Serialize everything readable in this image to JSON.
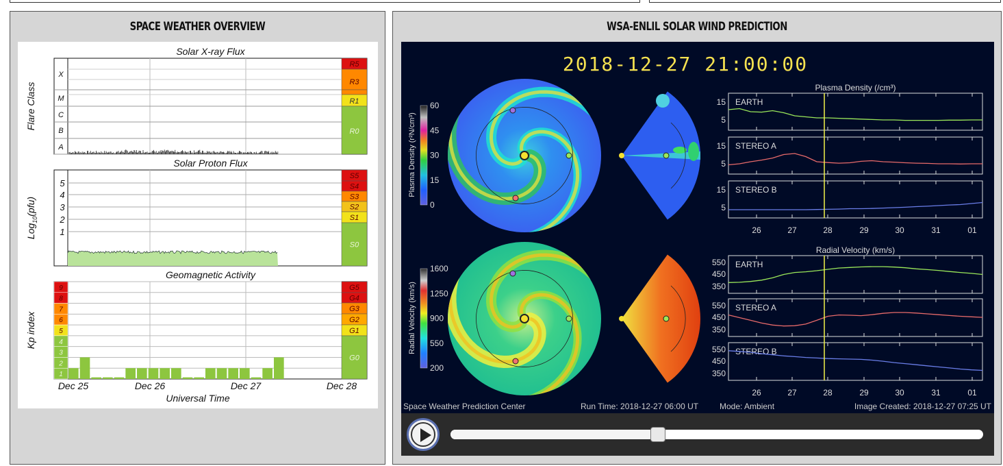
{
  "left_panel": {
    "title": "SPACE WEATHER OVERVIEW",
    "xray": {
      "title": "Solar X-ray Flux",
      "ylabel": "Flare Class",
      "classes": [
        "X",
        "M",
        "C",
        "B",
        "A"
      ],
      "scale": [
        {
          "label": "R5",
          "color": "#dd1111"
        },
        {
          "label": "R3",
          "color": "#ff8800"
        },
        {
          "label": "R1",
          "color": "#f2e21a"
        },
        {
          "label": "R0",
          "color": "#8dc63f"
        }
      ]
    },
    "proton": {
      "title": "Solar Proton Flux",
      "ylabel_main": "Log",
      "ylabel_sub": "10",
      "ylabel_tail": "(pfu)",
      "ticks": [
        "5",
        "4",
        "3",
        "2",
        "1"
      ],
      "scale": [
        {
          "label": "S5",
          "color": "#dd1111"
        },
        {
          "label": "S4",
          "color": "#dd1111"
        },
        {
          "label": "S3",
          "color": "#ff8800"
        },
        {
          "label": "S2",
          "color": "#f2c21a"
        },
        {
          "label": "S1",
          "color": "#f2e21a"
        },
        {
          "label": "S0",
          "color": "#8dc63f"
        }
      ]
    },
    "geomag": {
      "title": "Geomagnetic Activity",
      "ylabel": "Kp index",
      "kp_levels": [
        {
          "label": "9",
          "color": "#dd1111"
        },
        {
          "label": "8",
          "color": "#dd1111"
        },
        {
          "label": "7",
          "color": "#ff8800"
        },
        {
          "label": "6",
          "color": "#ff8800"
        },
        {
          "label": "5",
          "color": "#f2e21a"
        },
        {
          "label": "4",
          "color": "#8dc63f"
        },
        {
          "label": "3",
          "color": "#8dc63f"
        },
        {
          "label": "2",
          "color": "#8dc63f"
        },
        {
          "label": "1",
          "color": "#8dc63f"
        }
      ],
      "scale": [
        {
          "label": "G5",
          "color": "#dd1111"
        },
        {
          "label": "G4",
          "color": "#dd1111"
        },
        {
          "label": "G3",
          "color": "#ff8800"
        },
        {
          "label": "G2",
          "color": "#ffa800"
        },
        {
          "label": "G1",
          "color": "#f2e21a"
        },
        {
          "label": "G0",
          "color": "#8dc63f"
        }
      ],
      "kp_values": [
        1,
        2,
        0.15,
        0.15,
        0.15,
        1,
        1,
        1,
        1,
        1,
        0.15,
        0.15,
        1,
        1,
        1,
        1,
        0.15,
        1,
        2
      ]
    },
    "x_ticks": [
      "Dec 25",
      "Dec 26",
      "Dec 27",
      "Dec 28"
    ],
    "xlabel": "Universal Time"
  },
  "right_panel": {
    "title": "WSA-ENLIL SOLAR WIND PREDICTION",
    "datetime": "2018-12-27  21:00:00",
    "density_colorbar": {
      "label": "Plasma Density (r²N/cm³)",
      "ticks": [
        "60",
        "45",
        "30",
        "15",
        "0"
      ]
    },
    "velocity_colorbar": {
      "label": "Radial Velocity (km/s)",
      "ticks": [
        "1600",
        "1250",
        "900",
        "550",
        "200"
      ]
    },
    "density_plots": {
      "title": "Plasma Density (/cm³)",
      "ticks": [
        "15",
        "5"
      ],
      "series": [
        {
          "name": "EARTH",
          "color": "#9be85a",
          "values": [
            10,
            10.5,
            9,
            8.8,
            9.5,
            8.5,
            7,
            6.5,
            6,
            6,
            5.8,
            5.6,
            5.4,
            5.2,
            5,
            5,
            4.8,
            4.8,
            4.8,
            4.8,
            4.9,
            4.9,
            5,
            5
          ]
        },
        {
          "name": "STEREO A",
          "color": "#e86a6a",
          "values": [
            4.5,
            5,
            6,
            6.8,
            7.8,
            9.5,
            10,
            8.5,
            6,
            5.6,
            5.3,
            5.5,
            6.2,
            6.5,
            6,
            5.8,
            5.5,
            5.3,
            5.2,
            5,
            5,
            4.9,
            5,
            5
          ]
        },
        {
          "name": "STEREO B",
          "color": "#6a7ee8",
          "values": [
            4,
            4,
            4,
            4,
            4,
            4,
            4,
            4,
            4.1,
            4.2,
            4.3,
            4.5,
            4.5,
            4.6,
            4.8,
            5,
            5.2,
            5.5,
            5.7,
            6,
            6.3,
            6.5,
            7,
            7.5
          ]
        }
      ]
    },
    "velocity_plots": {
      "title": "Radial Velocity (km/s)",
      "ticks": [
        "550",
        "450",
        "350"
      ],
      "series": [
        {
          "name": "EARTH",
          "color": "#9be85a",
          "values": [
            380,
            382,
            388,
            398,
            415,
            440,
            455,
            460,
            468,
            478,
            488,
            492,
            496,
            498,
            498,
            495,
            490,
            482,
            476,
            470,
            462,
            455,
            448,
            440
          ]
        },
        {
          "name": "STEREO A",
          "color": "#e86a6a",
          "values": [
            460,
            440,
            420,
            400,
            385,
            378,
            380,
            392,
            420,
            450,
            460,
            458,
            455,
            462,
            472,
            478,
            478,
            474,
            468,
            462,
            456,
            450,
            446,
            442
          ]
        },
        {
          "name": "STEREO B",
          "color": "#6a7ee8",
          "values": [
            520,
            515,
            508,
            498,
            490,
            482,
            476,
            470,
            466,
            462,
            460,
            458,
            456,
            450,
            442,
            432,
            424,
            416,
            408,
            400,
            392,
            384,
            378,
            374
          ]
        }
      ]
    },
    "x_ticks": [
      "26",
      "27",
      "28",
      "29",
      "30",
      "31",
      "01"
    ],
    "footer": {
      "center": "Space Weather Prediction Center",
      "run_time": "Run Time: 2018-12-27 06:00 UT",
      "mode": "Mode: Ambient",
      "created": "Image Created: 2018-12-27 07:25 UT"
    },
    "player": {
      "progress": 0.39
    }
  },
  "colors": {
    "panel_bg": "#d6d6d6",
    "enlil_bg": "#000a26",
    "time_marker": "#f2f24a",
    "date_text": "#f5e150"
  }
}
